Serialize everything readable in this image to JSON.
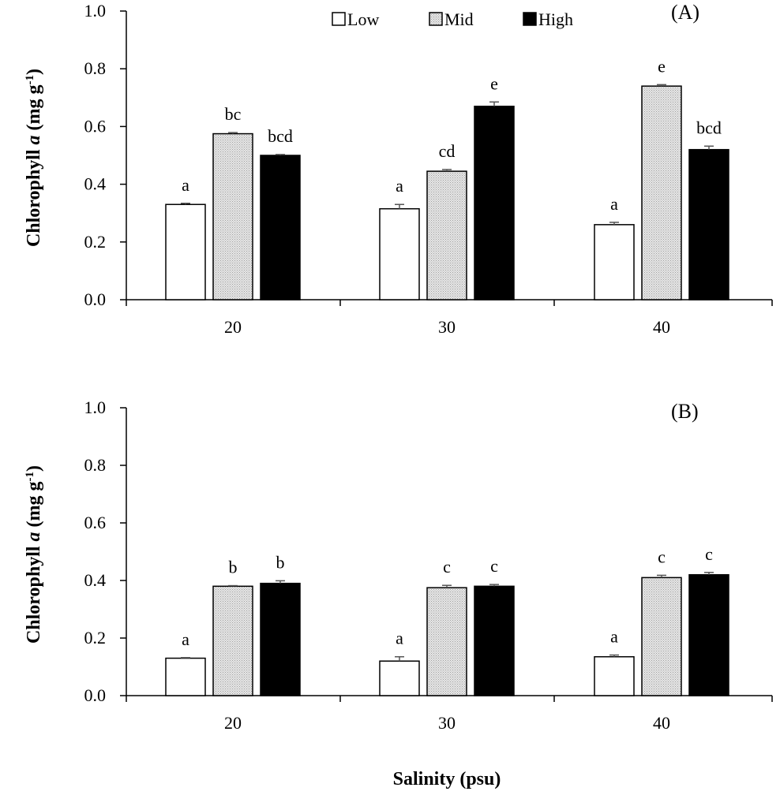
{
  "chart_data": [
    {
      "type": "bar",
      "panel_label": "(A)",
      "categories": [
        "20",
        "30",
        "40"
      ],
      "ylabel": "Chlorophyll a (mg g-1)",
      "ylim": [
        0,
        1.0
      ],
      "yticks": [
        "0.0",
        "0.2",
        "0.4",
        "0.6",
        "0.8",
        "1.0"
      ],
      "series": [
        {
          "name": "Low",
          "color": "#ffffff",
          "values": [
            0.33,
            0.315,
            0.26
          ],
          "errors": [
            0.004,
            0.015,
            0.008
          ],
          "labels": [
            "a",
            "a",
            "a"
          ]
        },
        {
          "name": "Mid",
          "color": "#d9d9d9",
          "values": [
            0.575,
            0.445,
            0.74
          ],
          "errors": [
            0.004,
            0.006,
            0.005
          ],
          "labels": [
            "bc",
            "cd",
            "e"
          ]
        },
        {
          "name": "High",
          "color": "#000000",
          "values": [
            0.5,
            0.67,
            0.52
          ],
          "errors": [
            0.003,
            0.015,
            0.012
          ],
          "labels": [
            "bcd",
            "e",
            "bcd"
          ]
        }
      ],
      "legend": "top-center"
    },
    {
      "type": "bar",
      "panel_label": "(B)",
      "categories": [
        "20",
        "30",
        "40"
      ],
      "ylabel": "Chlorophyll a (mg g-1)",
      "xlabel": "Salinity (psu)",
      "ylim": [
        0,
        1.0
      ],
      "yticks": [
        "0.0",
        "0.2",
        "0.4",
        "0.6",
        "0.8",
        "1.0"
      ],
      "series": [
        {
          "name": "Low",
          "color": "#ffffff",
          "values": [
            0.13,
            0.12,
            0.135
          ],
          "errors": [
            0.002,
            0.015,
            0.006
          ],
          "labels": [
            "a",
            "a",
            "a"
          ]
        },
        {
          "name": "Mid",
          "color": "#d9d9d9",
          "values": [
            0.38,
            0.375,
            0.41
          ],
          "errors": [
            0.002,
            0.008,
            0.008
          ],
          "labels": [
            "b",
            "c",
            "c"
          ]
        },
        {
          "name": "High",
          "color": "#000000",
          "values": [
            0.39,
            0.38,
            0.42
          ],
          "errors": [
            0.009,
            0.006,
            0.008
          ],
          "labels": [
            "b",
            "c",
            "c"
          ]
        }
      ]
    }
  ]
}
